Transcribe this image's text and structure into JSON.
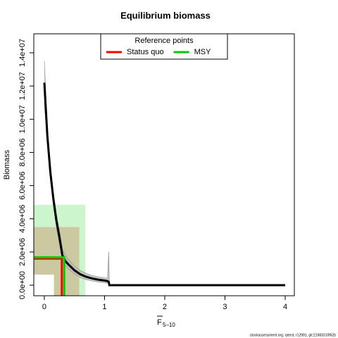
{
  "chart_data": {
    "type": "line",
    "title": "Equilibrium biomass",
    "x_label": "F",
    "x_label_sub": "5–10",
    "y_label": "Biomass",
    "footer": "stockassessment.org, rptest, r12991, git:21983310f62b",
    "legend_title": "Reference points",
    "legend": "top",
    "xlim": [
      -0.175,
      4.152
    ],
    "ylim": [
      -636000,
      15146000
    ],
    "xticks": [
      0,
      1,
      2,
      3,
      4
    ],
    "yticks": [
      {
        "value": 0,
        "label": "0.0e+00"
      },
      {
        "value": 2000000,
        "label": "2.0e+06"
      },
      {
        "value": 4000000,
        "label": "4.0e+06"
      },
      {
        "value": 6000000,
        "label": "6.0e+06"
      },
      {
        "value": 8000000,
        "label": "8.0e+06"
      },
      {
        "value": 10000000,
        "label": "1.0e+07"
      },
      {
        "value": 12000000,
        "label": "1.2e+07"
      },
      {
        "value": 14000000,
        "label": "1.4e+07"
      }
    ],
    "x": [
      0,
      0.05,
      0.1,
      0.15,
      0.2,
      0.25,
      0.3,
      0.35,
      0.4,
      0.5,
      0.6,
      0.7,
      0.8,
      0.9,
      1.0,
      1.05,
      1.07,
      1.08,
      4
    ],
    "series": [
      {
        "color": "#000000",
        "values": [
          12200000,
          9000000,
          6800000,
          5200000,
          3900000,
          2900000,
          1800000,
          1450000,
          1250000,
          900000,
          650000,
          500000,
          400000,
          330000,
          280000,
          250000,
          200000,
          0,
          0
        ]
      },
      {
        "color": "#999999",
        "values": [
          13500000,
          9400000,
          7200000,
          5600000,
          4300000,
          3300000,
          2200000,
          1800000,
          1550000,
          1150000,
          880000,
          700000,
          580000,
          500000,
          440000,
          420000,
          2000000,
          0,
          0
        ]
      },
      {
        "color": "#999999",
        "values": [
          11000000,
          8600000,
          6400000,
          4800000,
          3500000,
          2500000,
          1450000,
          1150000,
          980000,
          680000,
          460000,
          330000,
          250000,
          190000,
          150000,
          120000,
          100000,
          0,
          0
        ]
      }
    ],
    "ref_points": [
      {
        "name": "Status quo",
        "color": "#ff0000",
        "F": 0.29,
        "B": 1600000,
        "F_lo": 0.16,
        "F_hi": 0.58,
        "B_lo": 640000,
        "B_hi": 3500000
      },
      {
        "name": "MSY",
        "color": "#00cc00",
        "F": 0.33,
        "B": 1680000,
        "F_lo": 0.16,
        "F_hi": 0.68,
        "B_lo": 640000,
        "B_hi": 4840000
      }
    ]
  }
}
